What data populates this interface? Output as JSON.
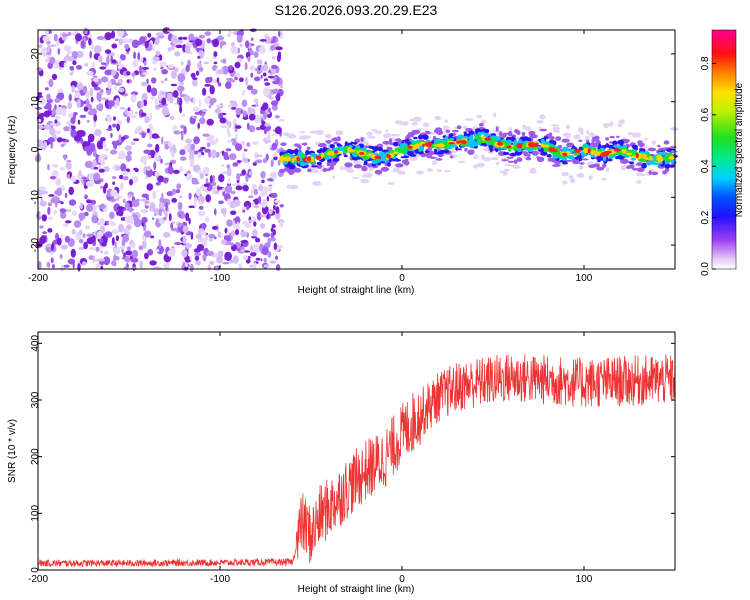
{
  "title": "S126.2026.093.20.29.E23",
  "colors": {
    "snr_line": "#ee3333",
    "axis": "#000000",
    "spec_fg": "#7a1fd6"
  },
  "chart_data": [
    {
      "type": "heatmap",
      "name": "spectrogram",
      "xlabel": "Height of straight line (km)",
      "ylabel": "Frequency (Hz)",
      "xlim": [
        -200,
        150
      ],
      "ylim": [
        -25,
        25
      ],
      "xticks": [
        -200,
        -100,
        0,
        100
      ],
      "yticks": [
        -20,
        -10,
        0,
        10,
        20
      ],
      "colorbar": {
        "label": "Normalized spectral amplitude",
        "range": [
          0,
          0.93
        ],
        "ticks": [
          0.0,
          0.2,
          0.4,
          0.6,
          0.8
        ]
      },
      "noise_region_x": [
        -200,
        -66
      ],
      "signal_track": {
        "x": [
          -66,
          -50,
          -40,
          -30,
          -20,
          -10,
          0,
          10,
          20,
          30,
          40,
          45,
          50,
          60,
          70,
          78,
          85,
          90,
          100,
          110,
          120,
          130,
          140,
          150
        ],
        "freq": [
          -2,
          -2,
          -1,
          0,
          -1,
          -2,
          0,
          1,
          1,
          1.5,
          2,
          2.5,
          1.5,
          0.5,
          1,
          1,
          -0.5,
          -1,
          0,
          -1,
          0,
          -1.5,
          -2,
          -1.5
        ]
      }
    },
    {
      "type": "line",
      "name": "snr",
      "xlabel": "Height of straight line (km)",
      "ylabel": "SNR (10 * v/v)",
      "xlim": [
        -200,
        150
      ],
      "ylim": [
        0,
        420
      ],
      "xticks": [
        -200,
        -100,
        0,
        100
      ],
      "yticks": [
        0,
        100,
        200,
        300,
        400
      ],
      "x": [
        -200,
        -150,
        -100,
        -60,
        -55,
        -50,
        -45,
        -40,
        -30,
        -20,
        -10,
        0,
        10,
        20,
        30,
        40,
        60,
        80,
        100,
        120,
        150
      ],
      "y": [
        12,
        12,
        13,
        14,
        85,
        60,
        95,
        110,
        145,
        175,
        195,
        240,
        275,
        305,
        322,
        330,
        340,
        335,
        330,
        333,
        336
      ]
    }
  ]
}
